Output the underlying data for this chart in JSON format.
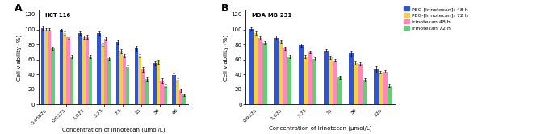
{
  "A": {
    "title": "HCT-116",
    "xlabel": "Concentration of irinotecan (μmol/L)",
    "ylabel": "Cell viability (%)",
    "categories": [
      "0.46875",
      "0.9375",
      "1.875",
      "3.75",
      "7.5",
      "15",
      "30",
      "60"
    ],
    "series": {
      "PEG-[Irinotecan]₃ 48 h": [
        102,
        99,
        95,
        95,
        83,
        75,
        55,
        39
      ],
      "PEG-[Irinotecan]₃ 72 h": [
        100,
        95,
        90,
        80,
        71,
        65,
        57,
        33
      ],
      "Irinotecan 48 h": [
        100,
        90,
        90,
        88,
        65,
        47,
        32,
        19
      ],
      "Irinotecan 72 h": [
        75,
        64,
        64,
        62,
        50,
        34,
        25,
        13
      ]
    },
    "errors": {
      "PEG-[Irinotecan]₃ 48 h": [
        2.5,
        2,
        2,
        2,
        3,
        3,
        3,
        2
      ],
      "PEG-[Irinotecan]₃ 72 h": [
        2,
        2,
        2,
        2,
        2.5,
        2,
        3,
        2
      ],
      "Irinotecan 48 h": [
        2,
        2,
        2.5,
        2,
        2.5,
        3,
        3,
        2
      ],
      "Irinotecan 72 h": [
        2,
        2,
        2,
        2,
        2,
        2,
        2,
        2
      ]
    },
    "ylim": [
      0,
      125
    ],
    "yticks": [
      0,
      20,
      40,
      60,
      80,
      100,
      120
    ]
  },
  "B": {
    "title": "MDA-MB-231",
    "xlabel": "Concentration of irinotecan (μmol/L)",
    "ylabel": "Cell viability (%)",
    "categories": [
      "0.9375",
      "1.875",
      "3.75",
      "15",
      "30",
      "120"
    ],
    "series": {
      "PEG-[Irinotecan]₃ 48 h": [
        101,
        89,
        79,
        72,
        68,
        47
      ],
      "PEG-[Irinotecan]₃ 72 h": [
        95,
        84,
        64,
        63,
        55,
        43
      ],
      "Irinotecan 48 h": [
        89,
        75,
        70,
        59,
        54,
        44
      ],
      "Irinotecan 72 h": [
        82,
        64,
        61,
        36,
        33,
        25
      ]
    },
    "errors": {
      "PEG-[Irinotecan]₃ 48 h": [
        2,
        2.5,
        2,
        2,
        3,
        4
      ],
      "PEG-[Irinotecan]₃ 72 h": [
        2,
        2,
        2,
        2,
        2,
        2
      ],
      "Irinotecan 48 h": [
        2,
        2,
        2,
        2,
        2,
        2
      ],
      "Irinotecan 72 h": [
        2,
        2,
        2,
        2,
        2,
        2
      ]
    },
    "ylim": [
      0,
      125
    ],
    "yticks": [
      0,
      20,
      40,
      60,
      80,
      100,
      120
    ]
  },
  "colors": {
    "PEG-[Irinotecan]₃ 48 h": "#3355CC",
    "PEG-[Irinotecan]₃ 72 h": "#F0D050",
    "Irinotecan 48 h": "#FF88BB",
    "Irinotecan 72 h": "#66CC77"
  },
  "legend_labels": [
    "PEG-[Irinotecan]₃ 48 h",
    "PEG-[Irinotecan]₃ 72 h",
    "Irinotecan 48 h",
    "Irinotecan 72 h"
  ],
  "bar_width": 0.18,
  "fig_width": 6.8,
  "fig_height": 1.66,
  "dpi": 100
}
